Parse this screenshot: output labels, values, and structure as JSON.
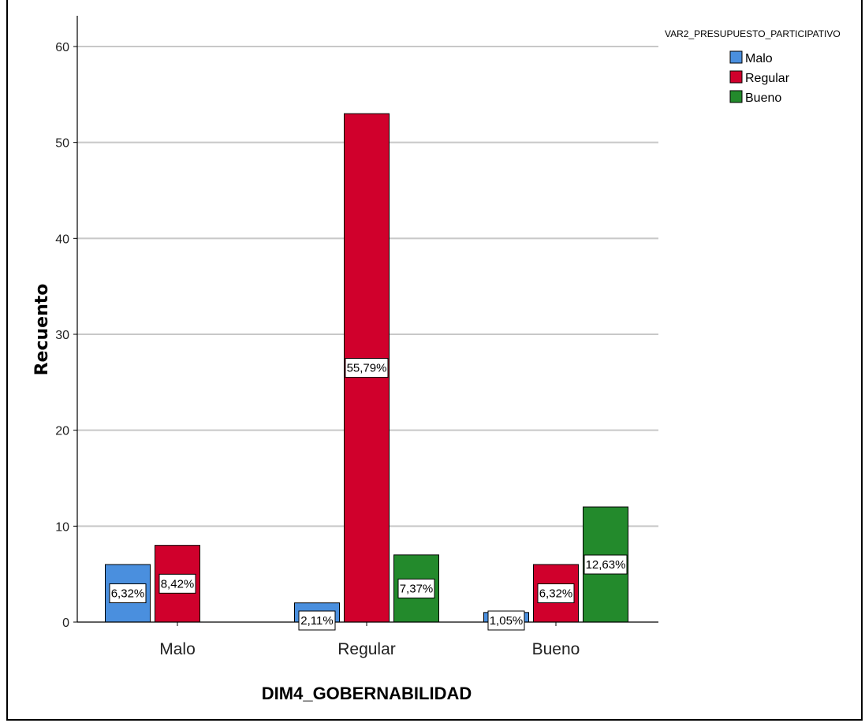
{
  "chart_data": {
    "type": "bar",
    "title": "",
    "xlabel": "DIM4_GOBERNABILIDAD",
    "ylabel": "Recuento",
    "categories": [
      "Malo",
      "Regular",
      "Bueno"
    ],
    "legend_title": "VAR2_PRESUPUESTO_PARTICIPATIVO",
    "legend_position": "top-right",
    "grid": true,
    "ylim": [
      0,
      60
    ],
    "yticks": [
      0,
      10,
      20,
      30,
      40,
      50,
      60
    ],
    "series": [
      {
        "name": "Malo",
        "color": "#4a8fde",
        "values": [
          6,
          2,
          1
        ],
        "labels": [
          "6,32%",
          "2,11%",
          "1,05%"
        ]
      },
      {
        "name": "Regular",
        "color": "#d0002c",
        "values": [
          8,
          53,
          6
        ],
        "labels": [
          "8,42%",
          "55,79%",
          "6,32%"
        ]
      },
      {
        "name": "Bueno",
        "color": "#238a2c",
        "values": [
          0,
          7,
          12
        ],
        "labels": [
          "",
          "7,37%",
          "12,63%"
        ]
      }
    ]
  }
}
